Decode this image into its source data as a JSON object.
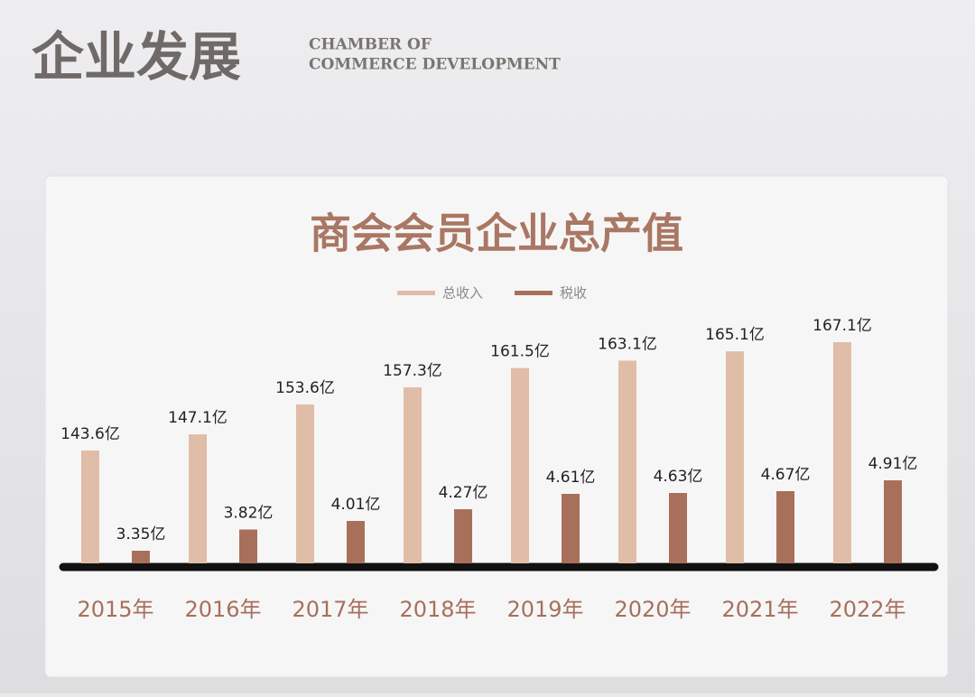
{
  "header": {
    "title": "企业发展",
    "subtitle_lines": [
      "CHAMBER OF",
      "COMMERCE DEVELOPMENT"
    ]
  },
  "chart_data": {
    "type": "bar",
    "title": "商会会员企业总产值",
    "categories": [
      "2015年",
      "2016年",
      "2017年",
      "2018年",
      "2019年",
      "2020年",
      "2021年",
      "2022年"
    ],
    "series": [
      {
        "name": "总收入",
        "color": "#e0bda6",
        "values": [
          143.6,
          147.1,
          153.6,
          157.3,
          161.5,
          163.1,
          165.1,
          167.1
        ],
        "value_labels": [
          "143.6亿",
          "147.1亿",
          "153.6亿",
          "157.3亿",
          "161.5亿",
          "163.1亿",
          "165.1亿",
          "167.1亿"
        ]
      },
      {
        "name": "税收",
        "color": "#a8705a",
        "values": [
          3.35,
          3.82,
          4.01,
          4.27,
          4.61,
          4.63,
          4.67,
          4.91
        ],
        "value_labels": [
          "3.35亿",
          "3.82亿",
          "4.01亿",
          "4.27亿",
          "4.61亿",
          "4.63亿",
          "4.67亿",
          "4.91亿"
        ]
      }
    ]
  }
}
